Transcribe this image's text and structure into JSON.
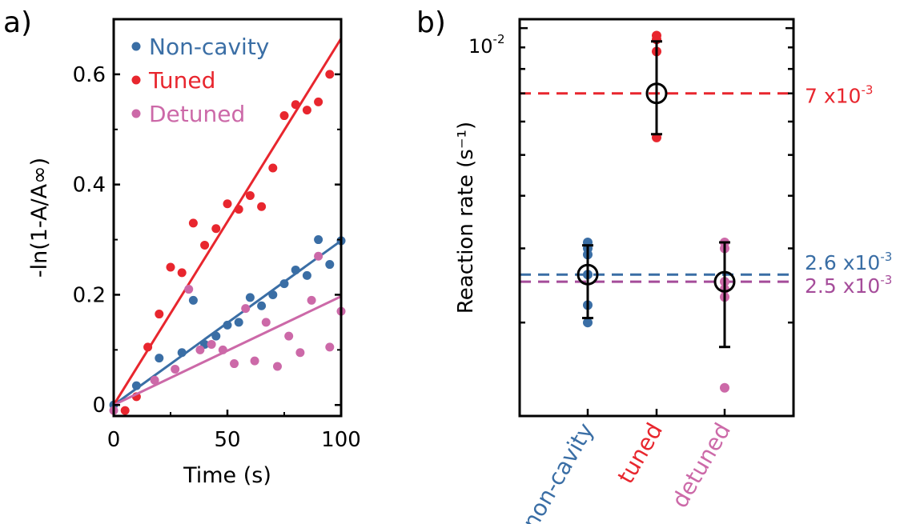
{
  "colors": {
    "blue": "#3a6ea5",
    "red": "#e8262e",
    "pink": "#cc69a8",
    "black": "#000000"
  },
  "chart_data": [
    {
      "panel_label": "a)",
      "type": "scatter",
      "xlabel": "Time (s)",
      "ylabel": "-ln(1-A/A∞)",
      "xlim": [
        0,
        100
      ],
      "ylim": [
        -0.02,
        0.7
      ],
      "xticks": [
        "0",
        "50",
        "100"
      ],
      "yticks": [
        "0",
        "0.2",
        "0.4",
        "0.6"
      ],
      "series": [
        {
          "name": "Non-cavity",
          "color": "#3a6ea5",
          "points": [
            [
              0,
              0
            ],
            [
              10,
              0.035
            ],
            [
              20,
              0.085
            ],
            [
              30,
              0.095
            ],
            [
              35,
              0.19
            ],
            [
              40,
              0.11
            ],
            [
              45,
              0.125
            ],
            [
              50,
              0.145
            ],
            [
              55,
              0.15
            ],
            [
              60,
              0.195
            ],
            [
              65,
              0.18
            ],
            [
              70,
              0.2
            ],
            [
              75,
              0.22
            ],
            [
              80,
              0.245
            ],
            [
              85,
              0.235
            ],
            [
              90,
              0.3
            ],
            [
              95,
              0.255
            ],
            [
              100,
              0.298
            ]
          ],
          "fit": [
            [
              0,
              0
            ],
            [
              100,
              0.298
            ]
          ]
        },
        {
          "name": "Tuned",
          "color": "#e8262e",
          "points": [
            [
              5,
              -0.01
            ],
            [
              10,
              0.015
            ],
            [
              15,
              0.105
            ],
            [
              20,
              0.165
            ],
            [
              25,
              0.25
            ],
            [
              30,
              0.24
            ],
            [
              35,
              0.33
            ],
            [
              40,
              0.29
            ],
            [
              45,
              0.32
            ],
            [
              50,
              0.365
            ],
            [
              55,
              0.355
            ],
            [
              60,
              0.38
            ],
            [
              65,
              0.36
            ],
            [
              70,
              0.43
            ],
            [
              75,
              0.525
            ],
            [
              80,
              0.545
            ],
            [
              85,
              0.535
            ],
            [
              90,
              0.55
            ],
            [
              95,
              0.6
            ]
          ],
          "fit": [
            [
              0,
              0
            ],
            [
              100,
              0.665
            ]
          ]
        },
        {
          "name": "Detuned",
          "color": "#cc69a8",
          "points": [
            [
              0,
              -0.01
            ],
            [
              18,
              0.045
            ],
            [
              27,
              0.065
            ],
            [
              33,
              0.21
            ],
            [
              38,
              0.1
            ],
            [
              43,
              0.11
            ],
            [
              48,
              0.1
            ],
            [
              53,
              0.075
            ],
            [
              58,
              0.175
            ],
            [
              62,
              0.08
            ],
            [
              67,
              0.15
            ],
            [
              72,
              0.07
            ],
            [
              77,
              0.125
            ],
            [
              82,
              0.095
            ],
            [
              87,
              0.19
            ],
            [
              90,
              0.27
            ],
            [
              95,
              0.105
            ],
            [
              100,
              0.17
            ]
          ],
          "fit": [
            [
              0,
              0
            ],
            [
              100,
              0.197
            ]
          ]
        }
      ]
    },
    {
      "panel_label": "b)",
      "type": "scatter",
      "yscale": "log",
      "ylabel": "Reaction rate (s⁻¹)",
      "ylim": [
        0.0012,
        0.0105
      ],
      "ytick_label": "10",
      "ytick_label_exp": "-2",
      "categories": [
        {
          "label": "non-cavity",
          "color": "#3a6ea5",
          "points": [
            0.0031,
            0.003,
            0.0029,
            0.0026,
            0.0022,
            0.002
          ],
          "mean": 0.0026,
          "err_low": 0.00205,
          "err_high": 0.00305
        },
        {
          "label": "tuned",
          "color": "#e8262e",
          "points": [
            0.0096,
            0.0094,
            0.0088,
            0.0055
          ],
          "mean": 0.007,
          "err_low": 0.0056,
          "err_high": 0.0093
        },
        {
          "label": "detuned",
          "color": "#cc69a8",
          "points": [
            0.0031,
            0.003,
            0.0025,
            0.0024,
            0.0023,
            0.0014
          ],
          "mean": 0.0025,
          "err_low": 0.00175,
          "err_high": 0.0031
        }
      ],
      "reference_lines": [
        {
          "value": 0.007,
          "mantissa": "7 x10",
          "exponent": "-3",
          "color": "#e8262e"
        },
        {
          "value": 0.0026,
          "mantissa": "2.6 x10",
          "exponent": "-3",
          "color": "#3a6ea5"
        },
        {
          "value": 0.0025,
          "mantissa": "2.5 x10",
          "exponent": "-3",
          "color": "#a54c9a"
        }
      ]
    }
  ]
}
